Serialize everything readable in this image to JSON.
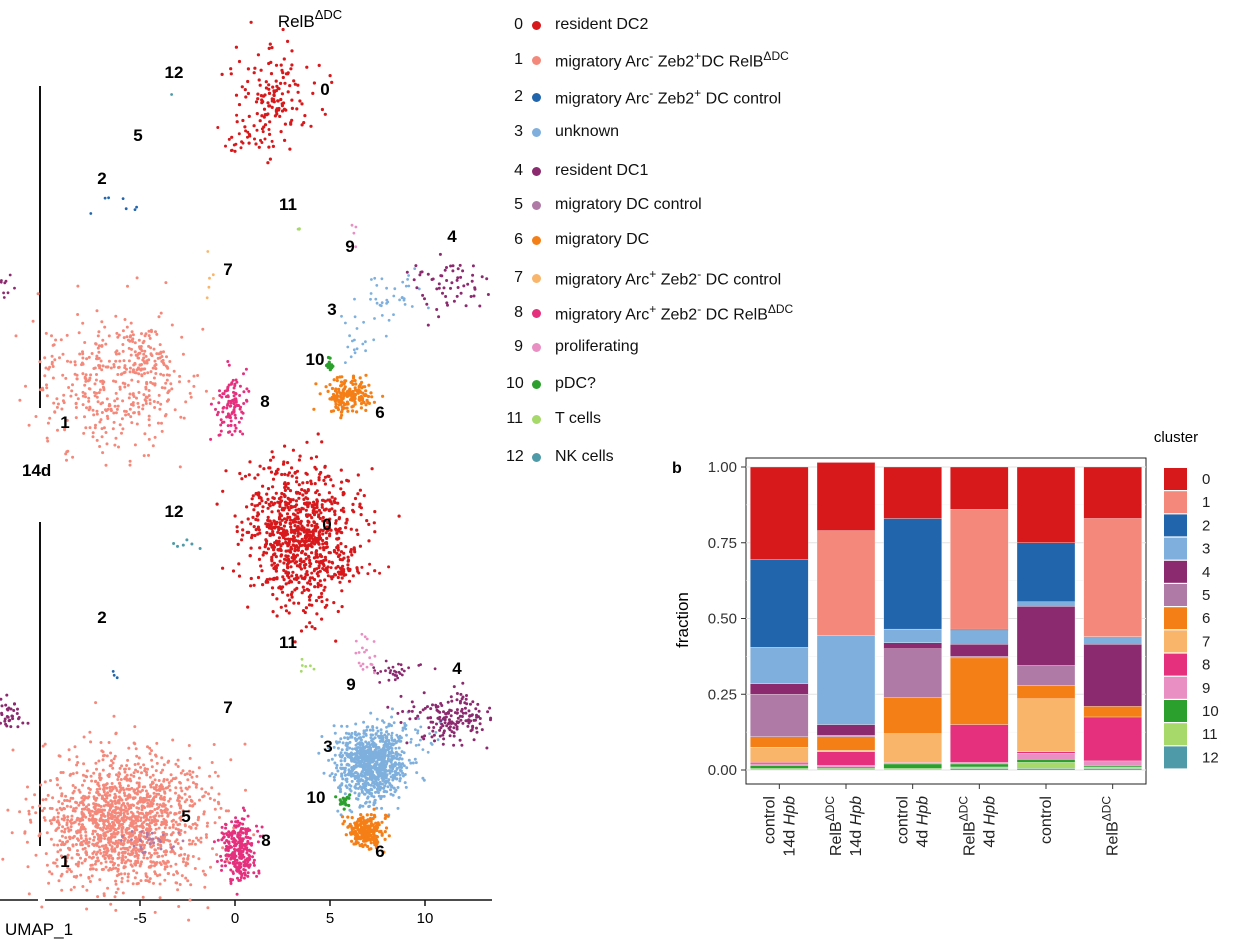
{
  "umap_panel": {
    "title": "RelB",
    "title_sup": "ΔDC",
    "section_label": "14d",
    "x_axis_label": "UMAP_1",
    "x_ticks": [
      "-5",
      "0",
      "5",
      "10"
    ],
    "top_cluster_labels": [
      "0",
      "1",
      "2",
      "3",
      "4",
      "5",
      "6",
      "7",
      "8",
      "9",
      "10",
      "11",
      "12"
    ],
    "bottom_cluster_labels": [
      "0",
      "1",
      "2",
      "3",
      "4",
      "5",
      "6",
      "7",
      "8",
      "9",
      "10",
      "11",
      "12"
    ]
  },
  "cluster_legend": [
    {
      "id": "0",
      "label": "resident DC2",
      "sup": "",
      "tail": "",
      "tail_sup": "",
      "color": "#d7191c"
    },
    {
      "id": "1",
      "label": "migratory Arc",
      "sup": "-",
      "tail": " Zeb2",
      "tail_sup": "+",
      "tail2": "DC RelB",
      "tail2_sup": "ΔDC",
      "color": "#f4897b"
    },
    {
      "id": "2",
      "label": "migratory Arc",
      "sup": "-",
      "tail": " Zeb2",
      "tail_sup": "+",
      "tail2": " DC control",
      "tail2_sup": "",
      "color": "#2166ac"
    },
    {
      "id": "3",
      "label": "unknown",
      "sup": "",
      "tail": "",
      "tail_sup": "",
      "color": "#7fb0dd"
    },
    {
      "id": "4",
      "label": "resident DC1",
      "sup": "",
      "tail": "",
      "tail_sup": "",
      "color": "#8b2a6e"
    },
    {
      "id": "5",
      "label": "migratory DC control",
      "sup": "",
      "tail": "",
      "tail_sup": "",
      "color": "#b07aa6"
    },
    {
      "id": "6",
      "label": "migratory DC",
      "sup": "",
      "tail": "",
      "tail_sup": "",
      "color": "#f57f17"
    },
    {
      "id": "7",
      "label": "migratory Arc",
      "sup": "+",
      "tail": " Zeb2",
      "tail_sup": "-",
      "tail2": " DC control",
      "tail2_sup": "",
      "color": "#f9b56a"
    },
    {
      "id": "8",
      "label": "migratory Arc",
      "sup": "+",
      "tail": " Zeb2",
      "tail_sup": "-",
      "tail2": " DC RelB",
      "tail2_sup": "ΔDC",
      "color": "#e5307e"
    },
    {
      "id": "9",
      "label": "proliferating",
      "sup": "",
      "tail": "",
      "tail_sup": "",
      "color": "#e98fc4"
    },
    {
      "id": "10",
      "label": "pDC?",
      "sup": "",
      "tail": "",
      "tail_sup": "",
      "color": "#2ca02c"
    },
    {
      "id": "11",
      "label": "T cells",
      "sup": "",
      "tail": "",
      "tail_sup": "",
      "color": "#a6d96a"
    },
    {
      "id": "12",
      "label": "NK cells",
      "sup": "",
      "tail": "",
      "tail_sup": "",
      "color": "#4e9aa8"
    }
  ],
  "chart_data": {
    "type": "bar",
    "stacked": true,
    "panel_label": "b",
    "ylabel": "fraction",
    "legend_title": "cluster",
    "ylim": [
      0,
      1
    ],
    "y_ticks": [
      "0.00",
      "0.25",
      "0.50",
      "0.75",
      "1.00"
    ],
    "categories": [
      {
        "line1": "control",
        "line1_sup": "",
        "line2": "14d ",
        "line2_it": "Hpb"
      },
      {
        "line1": "RelB",
        "line1_sup": "ΔDC",
        "line2": "14d ",
        "line2_it": "Hpb"
      },
      {
        "line1": "control",
        "line1_sup": "",
        "line2": "4d ",
        "line2_it": "Hpb"
      },
      {
        "line1": "RelB",
        "line1_sup": "ΔDC",
        "line2": "4d ",
        "line2_it": "Hpb"
      },
      {
        "line1": "control",
        "line1_sup": "",
        "line2": "",
        "line2_it": ""
      },
      {
        "line1": "RelB",
        "line1_sup": "ΔDC",
        "line2": "",
        "line2_it": ""
      }
    ],
    "series": [
      {
        "name": "0",
        "values": [
          0.305,
          0.225,
          0.17,
          0.14,
          0.25,
          0.17
        ]
      },
      {
        "name": "1",
        "values": [
          0.0,
          0.345,
          0.0,
          0.395,
          0.0,
          0.39
        ]
      },
      {
        "name": "2",
        "values": [
          0.29,
          0.0,
          0.365,
          0.005,
          0.195,
          0.0
        ]
      },
      {
        "name": "3",
        "values": [
          0.12,
          0.295,
          0.045,
          0.045,
          0.015,
          0.025
        ]
      },
      {
        "name": "4",
        "values": [
          0.035,
          0.035,
          0.02,
          0.04,
          0.195,
          0.205
        ]
      },
      {
        "name": "5",
        "values": [
          0.14,
          0.005,
          0.16,
          0.005,
          0.065,
          0.0
        ]
      },
      {
        "name": "6",
        "values": [
          0.035,
          0.045,
          0.12,
          0.22,
          0.045,
          0.035
        ]
      },
      {
        "name": "7",
        "values": [
          0.05,
          0.005,
          0.095,
          0.0,
          0.175,
          0.0
        ]
      },
      {
        "name": "8",
        "values": [
          0.005,
          0.045,
          0.0,
          0.125,
          0.005,
          0.145
        ]
      },
      {
        "name": "9",
        "values": [
          0.005,
          0.005,
          0.005,
          0.005,
          0.02,
          0.015
        ]
      },
      {
        "name": "10",
        "values": [
          0.01,
          0.005,
          0.015,
          0.01,
          0.01,
          0.005
        ]
      },
      {
        "name": "11",
        "values": [
          0.003,
          0.002,
          0.003,
          0.005,
          0.02,
          0.005
        ]
      },
      {
        "name": "12",
        "values": [
          0.002,
          0.003,
          0.002,
          0.005,
          0.005,
          0.005
        ]
      }
    ]
  }
}
